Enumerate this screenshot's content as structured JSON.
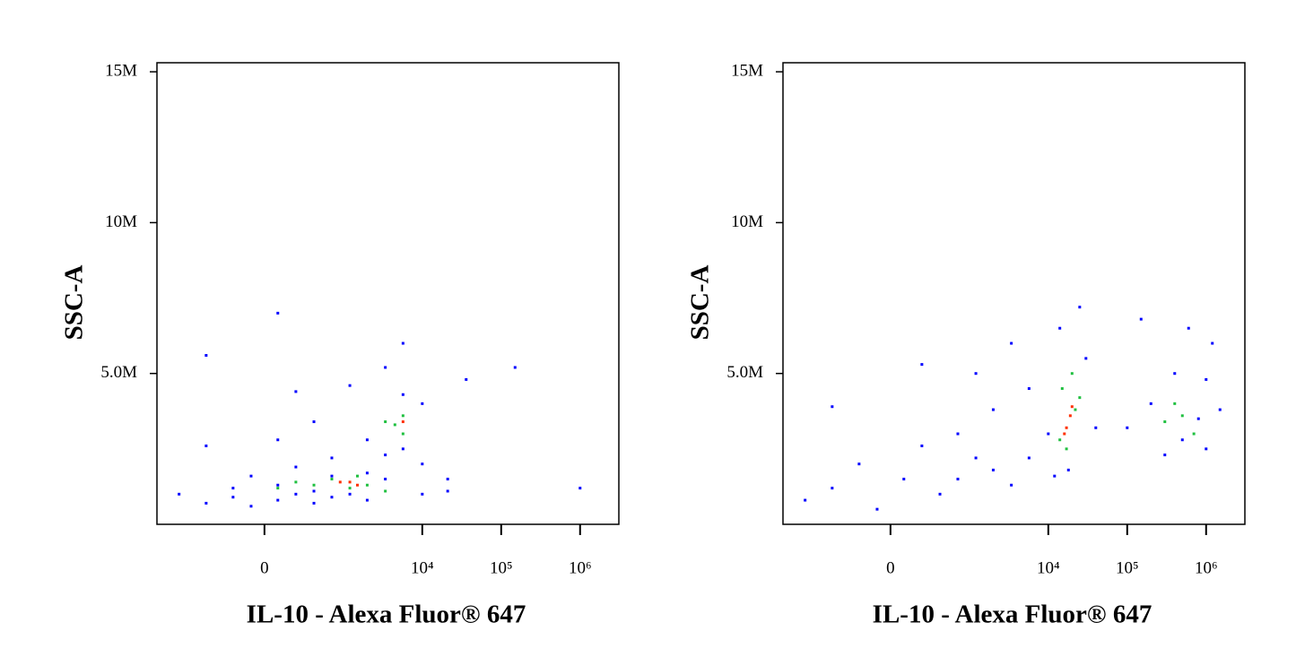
{
  "chart_data": [
    {
      "type": "scatter",
      "xscale": "biexponential",
      "xlabel": "IL-10 - Alexa Fluor® 647",
      "ylabel": "SSC-A",
      "xlim": [
        -2300,
        3100000
      ],
      "ylim": [
        0,
        15300000
      ],
      "xticks": [
        0,
        {
          "value": 10000,
          "label": "10⁴"
        },
        {
          "value": 100000,
          "label": "10⁵"
        },
        {
          "value": 1000000,
          "label": "10⁶"
        }
      ],
      "yticks": [
        {
          "value": 5000000,
          "label": "5.0M"
        },
        {
          "value": 10000000,
          "label": "10M"
        },
        {
          "value": 15000000,
          "label": "15M"
        }
      ],
      "series": [
        {
          "color": "#0000ff",
          "x": [
            -1200,
            -530,
            -210,
            -80,
            80,
            210,
            400,
            700,
            1200,
            2000,
            -530,
            80,
            210,
            3400,
            5700,
            10000,
            21000,
            36000,
            150000,
            1000000,
            -210,
            80,
            210,
            400,
            700,
            1200,
            2000,
            3400,
            5700,
            10000,
            21000,
            -80,
            400,
            2000,
            3400,
            5700,
            10000,
            80,
            -530,
            700
          ],
          "values": [
            1000000,
            2600000,
            1200000,
            600000,
            800000,
            1900000,
            3400000,
            2200000,
            4600000,
            2800000,
            5600000,
            7000000,
            4400000,
            5200000,
            6000000,
            2000000,
            1500000,
            4800000,
            5200000,
            1200000,
            900000,
            1300000,
            1000000,
            1100000,
            900000,
            1000000,
            1700000,
            1500000,
            2500000,
            1000000,
            1100000,
            1600000,
            700000,
            800000,
            2300000,
            4300000,
            4000000,
            2800000,
            700000,
            1600000
          ]
        },
        {
          "color": "#20c040",
          "x": [
            400,
            700,
            1200,
            2000,
            3400,
            5700,
            5700,
            4500,
            80,
            210,
            1500,
            3400
          ],
          "values": [
            1300000,
            1500000,
            1200000,
            1300000,
            3400000,
            3000000,
            3600000,
            3300000,
            1200000,
            1400000,
            1600000,
            1100000
          ]
        },
        {
          "color": "#ff3000",
          "x": [
            900,
            1200,
            1500,
            5700
          ],
          "values": [
            1400000,
            1400000,
            1300000,
            3400000
          ]
        }
      ]
    },
    {
      "type": "scatter",
      "xscale": "biexponential",
      "xlabel": "IL-10 - Alexa Fluor® 647",
      "ylabel": "SSC-A",
      "xlim": [
        -2300,
        3100000
      ],
      "ylim": [
        0,
        15300000
      ],
      "xticks": [
        0,
        {
          "value": 10000,
          "label": "10⁴"
        },
        {
          "value": 100000,
          "label": "10⁵"
        },
        {
          "value": 1000000,
          "label": "10⁶"
        }
      ],
      "yticks": [
        {
          "value": 5000000,
          "label": "5.0M"
        },
        {
          "value": 10000000,
          "label": "10M"
        },
        {
          "value": 15000000,
          "label": "15M"
        }
      ],
      "series": [
        {
          "color": "#0000ff",
          "x": [
            -1200,
            -530,
            -210,
            -80,
            80,
            210,
            400,
            700,
            1200,
            2000,
            3400,
            5700,
            -530,
            210,
            1200,
            3400,
            10000,
            14000,
            25000,
            18000,
            30000,
            150000,
            300000,
            600000,
            1000000,
            200000,
            500000,
            800000,
            1200000,
            1500000,
            12000,
            40000,
            700,
            5700,
            2000,
            100000,
            400000,
            1000000
          ],
          "values": [
            800000,
            1200000,
            2000000,
            500000,
            1500000,
            2600000,
            1000000,
            3000000,
            2200000,
            3800000,
            1300000,
            4500000,
            3900000,
            5300000,
            5000000,
            6000000,
            3000000,
            6500000,
            7200000,
            1800000,
            5500000,
            6800000,
            2300000,
            6500000,
            4800000,
            4000000,
            2800000,
            3500000,
            6000000,
            3800000,
            1600000,
            3200000,
            1500000,
            2200000,
            1800000,
            3200000,
            5000000,
            2500000
          ]
        },
        {
          "color": "#20c040",
          "x": [
            15000,
            20000,
            17000,
            22000,
            300000,
            500000,
            700000,
            400000,
            25000,
            14000
          ],
          "values": [
            4500000,
            5000000,
            2500000,
            3800000,
            3400000,
            3600000,
            3000000,
            4000000,
            4200000,
            2800000
          ]
        },
        {
          "color": "#ff3000",
          "x": [
            17000,
            19000,
            16000,
            20000
          ],
          "values": [
            3200000,
            3600000,
            3000000,
            3900000
          ]
        }
      ]
    }
  ]
}
